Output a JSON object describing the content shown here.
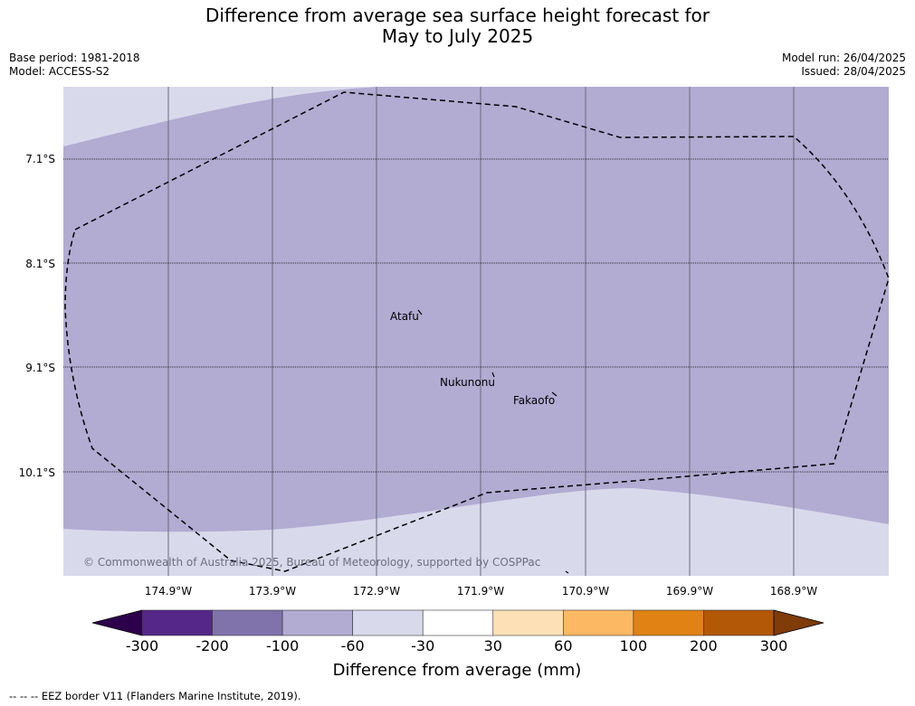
{
  "title_line1": "Difference from average sea surface height forecast for",
  "title_line2": "May to July 2025",
  "meta_left": [
    "Base period: 1981-2018",
    "Model: ACCESS-S2"
  ],
  "meta_right": [
    "Model run: 26/04/2025",
    "Issued: 28/04/2025"
  ],
  "lat_labels": [
    "7.1°S",
    "8.1°S",
    "9.1°S",
    "10.1°S"
  ],
  "lon_labels": [
    "174.9°W",
    "173.9°W",
    "172.9°W",
    "171.9°W",
    "170.9°W",
    "169.9°W",
    "168.9°W"
  ],
  "places": [
    {
      "name": "Atafu"
    },
    {
      "name": "Nukunonu"
    },
    {
      "name": "Fakaofo"
    }
  ],
  "copyright": "© Commonwealth of Australia 2025, Bureau of Meteorology, supported by COSPPac",
  "colorbar": {
    "ticks": [
      "-300",
      "-200",
      "-100",
      "-60",
      "-30",
      "30",
      "60",
      "100",
      "200",
      "300"
    ],
    "colors": [
      "#2d004b",
      "#542788",
      "#8073ac",
      "#b2abd2",
      "#d8daeb",
      "#ffffff",
      "#fee0b6",
      "#fdb863",
      "#e08214",
      "#b35806",
      "#7f3b08"
    ],
    "label": "Difference from average (mm)"
  },
  "colors": {
    "map_main": "#b2abd2",
    "map_light": "#d8daeb"
  },
  "footnote": "--  --  -- EEZ border V11 (Flanders Marine Institute, 2019)."
}
